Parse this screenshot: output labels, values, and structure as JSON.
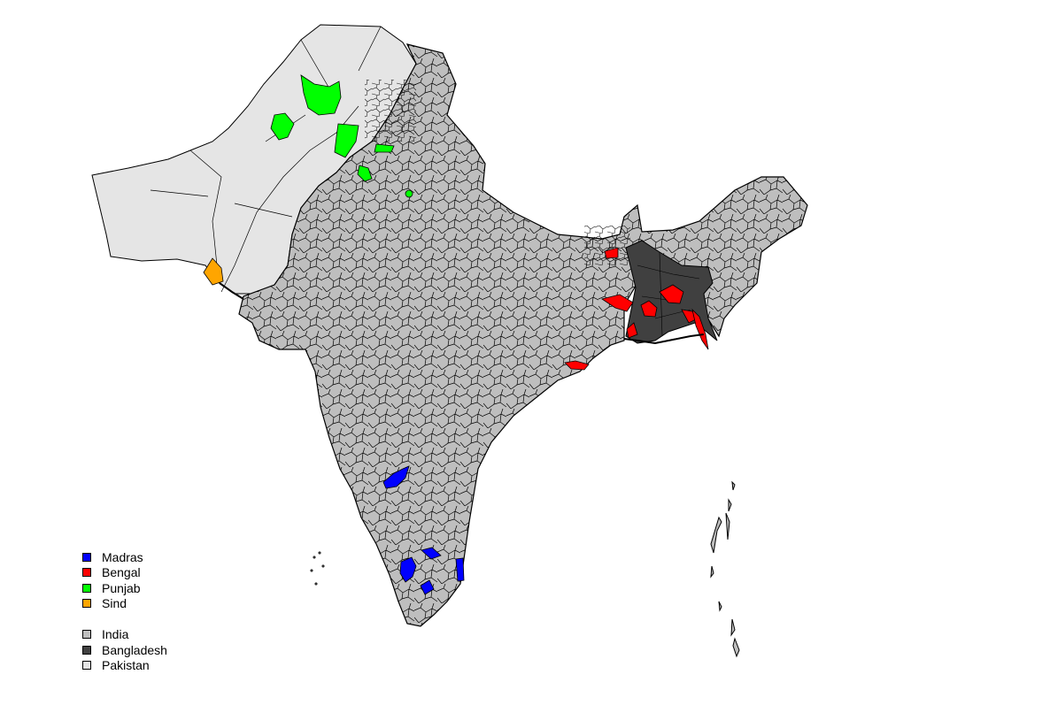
{
  "legend": {
    "provinces": [
      {
        "label": "Madras",
        "color": "#0000ff"
      },
      {
        "label": "Bengal",
        "color": "#ff0000"
      },
      {
        "label": "Punjab",
        "color": "#00ff00"
      },
      {
        "label": "Sind",
        "color": "#ffa500"
      }
    ],
    "countries": [
      {
        "label": "India",
        "color": "#bebebe"
      },
      {
        "label": "Bangladesh",
        "color": "#404040"
      },
      {
        "label": "Pakistan",
        "color": "#e5e5e5"
      }
    ]
  }
}
